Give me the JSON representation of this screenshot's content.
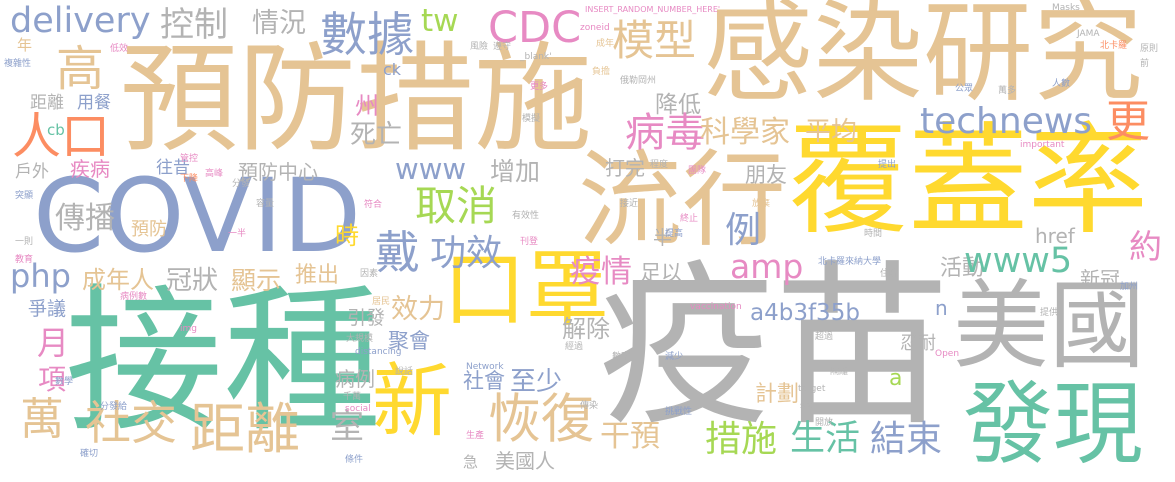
{
  "palette": {
    "tan": "#e5c494",
    "slate": "#8da0cb",
    "grey": "#b3b3b3",
    "yellow": "#ffd92f",
    "teal": "#66c2a5",
    "orange_red": "#fc8d62",
    "pink": "#e78ac3",
    "green": "#a6d854",
    "background": "#ffffff"
  },
  "words": [
    "預防措施",
    "感染研究",
    "覆蓋率",
    "流行",
    "COVID",
    "疫苗",
    "接種",
    "口罩",
    "新",
    "美國",
    "發現",
    "恢復",
    "數據",
    "模型",
    "CDC",
    "tw",
    "delivery",
    "控制",
    "情況",
    "高",
    "人口",
    "cb",
    "距離",
    "用餐",
    "年",
    "疾病",
    "戶外",
    "往昔",
    "預防中心",
    "傳播",
    "預防",
    "php",
    "成年人",
    "冠狀",
    "顯示",
    "推出",
    "時",
    "爭議",
    "月",
    "項",
    "萬",
    "社交",
    "距離",
    "室",
    "引發",
    "效力",
    "聚會",
    "病例",
    "社會",
    "至少",
    "解除",
    "疫情",
    "足以",
    "半",
    "例",
    "amp",
    "a4b3f35b",
    "n",
    "忍耐",
    "a",
    "計劃",
    "干預",
    "措施",
    "生活",
    "結束",
    "美國人",
    "急",
    "活動",
    "www5",
    "約",
    "新冠",
    "href",
    "戴",
    "功效",
    "取消",
    "www",
    "增加",
    "打完",
    "朋友",
    "州",
    "死亡",
    "病毒",
    "科學家",
    "平均",
    "technews",
    "更",
    "降低",
    "ck",
    "INSERT_RANDOM_NUMBER_HERE'",
    "Masks",
    "JAMA",
    "北卡羅",
    "原則",
    "前",
    "公眾",
    "萬多",
    "人數",
    "zoneid",
    "成年",
    "風險",
    "遵守",
    "_blank'",
    "負擔",
    "俄勒岡州",
    "更多",
    "模擬",
    "程度",
    "團隊",
    "提出",
    "important",
    "複雜性",
    "低效",
    "突顯",
    "一則",
    "教育",
    "有效性",
    "刊登",
    "符合",
    "容量",
    "分發",
    "高峰",
    "下降",
    "管控",
    "一半",
    "因素",
    "居民",
    "提高",
    "終止",
    "接近",
    "放棄",
    "時間",
    "北卡羅來納大學",
    "住院",
    "加州",
    "提供",
    "超過",
    "隔離",
    "減少",
    "數字",
    "vaccination",
    "target",
    "src",
    "Open",
    "Network",
    "distancing",
    "大規模",
    "social",
    "img",
    "病例數",
    "數學",
    "分發給",
    "千萬",
    "說話",
    "生產",
    "傳染",
    "挑戰性",
    "開放",
    "條件",
    "確切",
    "經過"
  ]
}
